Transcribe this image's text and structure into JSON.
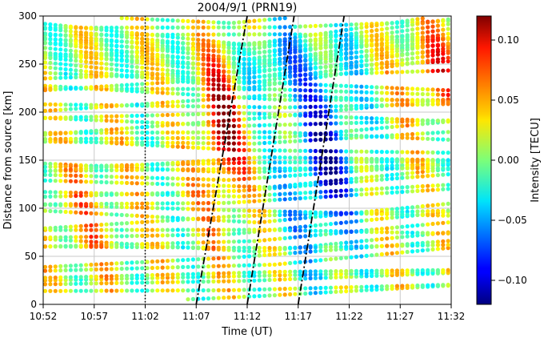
{
  "chart_data": {
    "type": "scatter",
    "title": "2004/9/1  (PRN19)",
    "xlabel": "Time (UT)",
    "ylabel": "Distance from source [km]",
    "colorbar_label": "Intensity  [TECU]",
    "x_unit": "minutes after 10:52 UT",
    "xlim": [
      0,
      40
    ],
    "ylim": [
      0,
      300
    ],
    "x_ticks": [
      {
        "v": 0,
        "label": "10:52"
      },
      {
        "v": 5,
        "label": "10:57"
      },
      {
        "v": 10,
        "label": "11:02"
      },
      {
        "v": 15,
        "label": "11:07"
      },
      {
        "v": 20,
        "label": "11:12"
      },
      {
        "v": 25,
        "label": "11:17"
      },
      {
        "v": 30,
        "label": "11:22"
      },
      {
        "v": 35,
        "label": "11:27"
      },
      {
        "v": 40,
        "label": "11:32"
      }
    ],
    "y_ticks": [
      0,
      50,
      100,
      150,
      200,
      250,
      300
    ],
    "colorbar_ticks": [
      {
        "v": 0.1,
        "label": "0.10"
      },
      {
        "v": 0.05,
        "label": "0.05"
      },
      {
        "v": 0.0,
        "label": "0.00"
      },
      {
        "v": -0.05,
        "label": "−0.05"
      },
      {
        "v": -0.1,
        "label": "−0.10"
      }
    ],
    "clim": [
      -0.12,
      0.12
    ],
    "grid": true,
    "colormap": "jet",
    "dotted_vline_x": 10,
    "dashdot_lines": [
      {
        "x0": 15,
        "y0": 0,
        "x1": 20,
        "y1": 300
      },
      {
        "x0": 25,
        "y0": 0,
        "x1": 29.5,
        "y1": 300
      },
      {
        "x0": 20,
        "y0": 0,
        "x1": 24.6,
        "y1": 300
      }
    ]
  }
}
